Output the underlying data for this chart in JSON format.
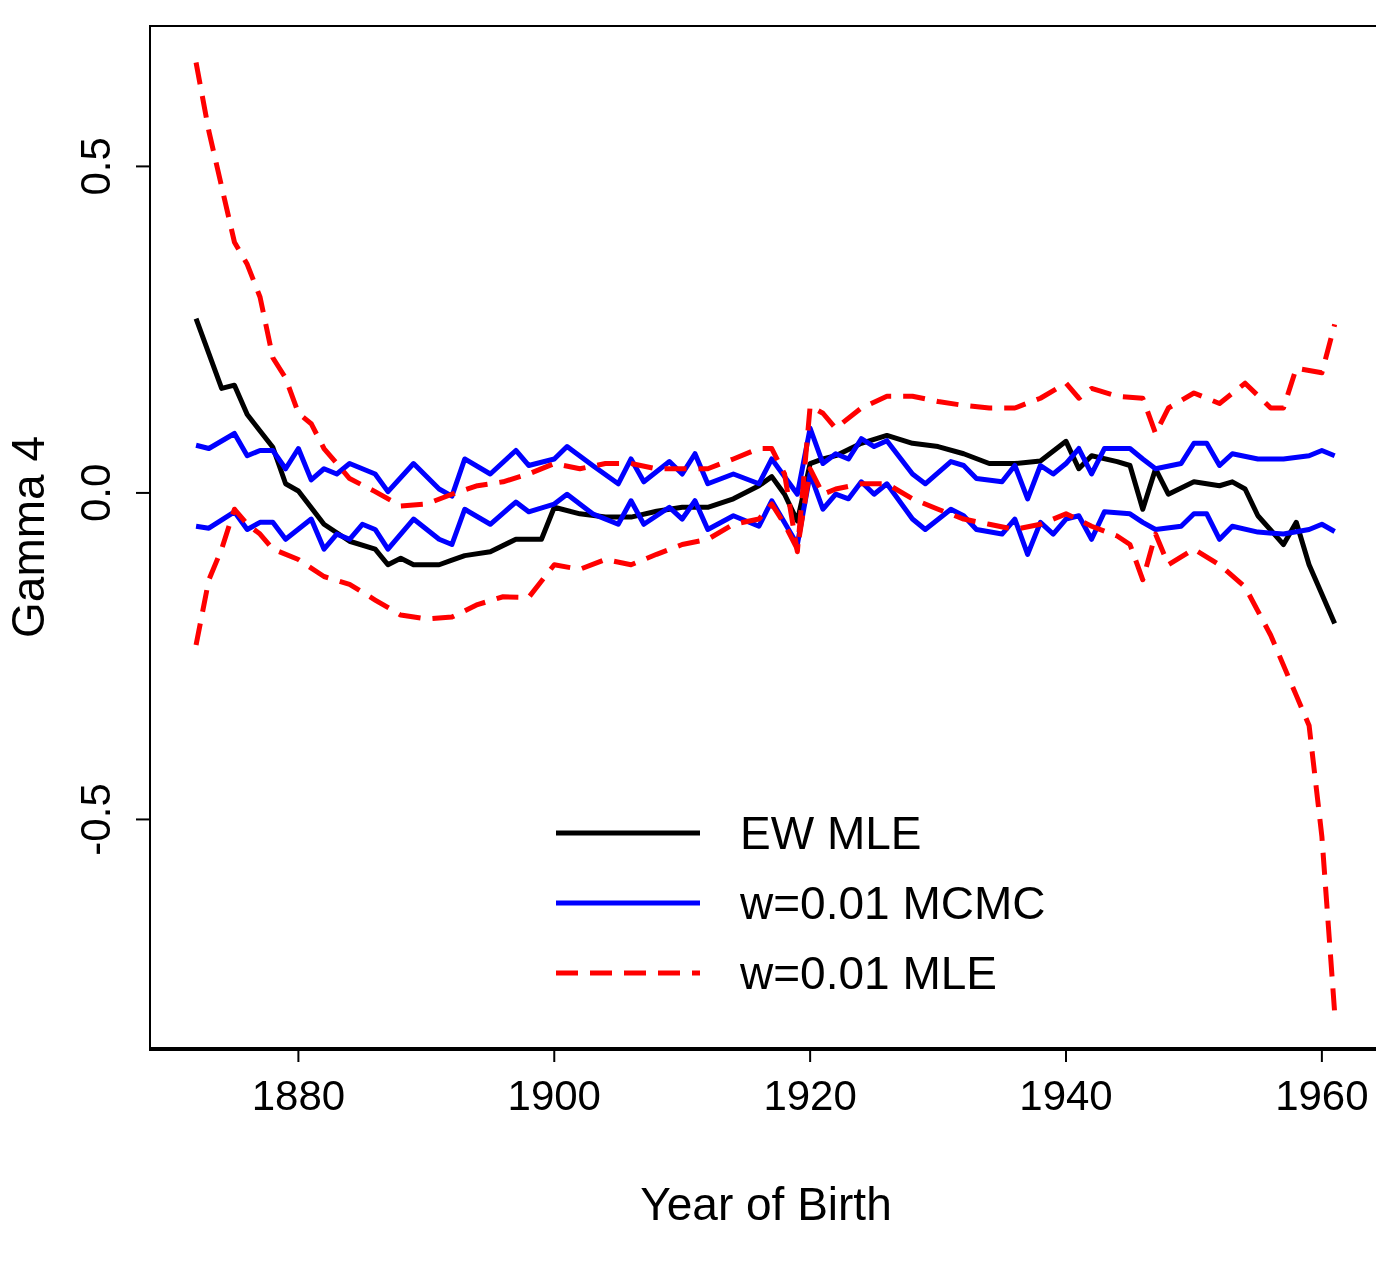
{
  "chart_data": {
    "type": "line",
    "xlabel": "Year of Birth",
    "ylabel": "Gamma 4",
    "xlim": [
      1868.4,
      1964.7
    ],
    "ylim": [
      -0.85,
      0.715
    ],
    "xticks": [
      1880,
      1900,
      1920,
      1940,
      1960
    ],
    "yticks": [
      -0.5,
      {
        "value": 0,
        "label": "0.0"
      },
      0.5
    ],
    "tick_labels": "xy",
    "grid": false,
    "legend": "bottom",
    "marker": "none",
    "series": [
      {
        "name": "EW MLE",
        "color": "#000000",
        "line_style": "solid",
        "x": [
          1872,
          1874,
          1875,
          1876,
          1878,
          1879,
          1880,
          1882,
          1884,
          1886,
          1887,
          1888,
          1889,
          1891,
          1892,
          1893,
          1895,
          1897,
          1899,
          1900,
          1902,
          1904,
          1906,
          1908,
          1910,
          1912,
          1914,
          1916,
          1917,
          1918,
          1919,
          1920,
          1921,
          1922,
          1924,
          1926,
          1928,
          1930,
          1932,
          1934,
          1936,
          1938,
          1940,
          1941,
          1942,
          1944,
          1945,
          1946,
          1947,
          1948,
          1950,
          1952,
          1953,
          1954,
          1955,
          1957,
          1958,
          1959,
          1961
        ],
        "values": [
          0.267,
          0.16,
          0.165,
          0.12,
          0.07,
          0.014,
          0.003,
          -0.048,
          -0.074,
          -0.086,
          -0.11,
          -0.1,
          -0.11,
          -0.11,
          -0.103,
          -0.096,
          -0.09,
          -0.071,
          -0.071,
          -0.022,
          -0.032,
          -0.037,
          -0.037,
          -0.028,
          -0.022,
          -0.022,
          -0.009,
          0.011,
          0.025,
          -0.002,
          -0.043,
          0.045,
          0.052,
          0.057,
          0.076,
          0.088,
          0.076,
          0.071,
          0.06,
          0.045,
          0.045,
          0.049,
          0.079,
          0.037,
          0.057,
          0.048,
          0.042,
          -0.025,
          0.037,
          -0.002,
          0.017,
          0.011,
          0.017,
          0.006,
          -0.035,
          -0.079,
          -0.045,
          -0.11,
          -0.2
        ]
      },
      {
        "name": "w=0.01 MCMC",
        "color": "#0000ff",
        "line_style": "solid",
        "x": [
          1872,
          1873,
          1875,
          1876,
          1877,
          1878,
          1879,
          1880,
          1881,
          1882,
          1883,
          1884,
          1886,
          1887,
          1889,
          1891,
          1892,
          1893,
          1895,
          1897,
          1898,
          1900,
          1901,
          1903,
          1905,
          1906,
          1907,
          1909,
          1910,
          1911,
          1912,
          1914,
          1916,
          1917,
          1919,
          1920,
          1921,
          1922,
          1923,
          1924,
          1925,
          1926,
          1928,
          1929,
          1931,
          1932,
          1933,
          1935,
          1936,
          1937,
          1938,
          1939,
          1940,
          1941,
          1942,
          1943,
          1945,
          1946,
          1947,
          1949,
          1950,
          1951,
          1952,
          1953,
          1955,
          1957,
          1959,
          1960,
          1961
        ],
        "values": [
          0.073,
          0.068,
          0.091,
          0.057,
          0.065,
          0.065,
          0.037,
          0.068,
          0.02,
          0.037,
          0.029,
          0.045,
          0.029,
          0.002,
          0.045,
          0.006,
          -0.005,
          0.052,
          0.029,
          0.065,
          0.042,
          0.052,
          0.071,
          0.042,
          0.014,
          0.052,
          0.017,
          0.048,
          0.029,
          0.06,
          0.014,
          0.029,
          0.014,
          0.052,
          -0.002,
          0.099,
          0.045,
          0.06,
          0.052,
          0.083,
          0.071,
          0.08,
          0.029,
          0.014,
          0.048,
          0.042,
          0.022,
          0.017,
          0.042,
          -0.009,
          0.042,
          0.029,
          0.045,
          0.068,
          0.029,
          0.068,
          0.068,
          0.052,
          0.037,
          0.045,
          0.076,
          0.076,
          0.042,
          0.06,
          0.052,
          0.052,
          0.057,
          0.065,
          0.057
        ]
      },
      {
        "color": "#0000ff",
        "line_style": "solid",
        "x": [
          1872,
          1873,
          1875,
          1876,
          1877,
          1878,
          1879,
          1881,
          1882,
          1883,
          1884,
          1885,
          1886,
          1887,
          1889,
          1891,
          1892,
          1893,
          1895,
          1897,
          1898,
          1900,
          1901,
          1903,
          1905,
          1906,
          1907,
          1909,
          1910,
          1911,
          1912,
          1914,
          1916,
          1917,
          1919,
          1920,
          1921,
          1922,
          1923,
          1924,
          1925,
          1926,
          1928,
          1929,
          1931,
          1932,
          1933,
          1935,
          1936,
          1937,
          1938,
          1939,
          1940,
          1941,
          1942,
          1943,
          1945,
          1946,
          1947,
          1949,
          1950,
          1951,
          1952,
          1953,
          1955,
          1957,
          1959,
          1960,
          1961
        ],
        "values": [
          -0.051,
          -0.054,
          -0.029,
          -0.056,
          -0.045,
          -0.045,
          -0.071,
          -0.04,
          -0.086,
          -0.063,
          -0.071,
          -0.048,
          -0.056,
          -0.086,
          -0.04,
          -0.071,
          -0.079,
          -0.025,
          -0.048,
          -0.014,
          -0.029,
          -0.017,
          -0.002,
          -0.032,
          -0.048,
          -0.012,
          -0.048,
          -0.022,
          -0.04,
          -0.012,
          -0.056,
          -0.035,
          -0.051,
          -0.012,
          -0.079,
          0.029,
          -0.025,
          -0.002,
          -0.009,
          0.017,
          -0.002,
          0.014,
          -0.04,
          -0.056,
          -0.025,
          -0.035,
          -0.056,
          -0.063,
          -0.04,
          -0.094,
          -0.045,
          -0.063,
          -0.04,
          -0.035,
          -0.071,
          -0.029,
          -0.032,
          -0.045,
          -0.056,
          -0.051,
          -0.032,
          -0.032,
          -0.071,
          -0.051,
          -0.06,
          -0.063,
          -0.056,
          -0.048,
          -0.059
        ]
      },
      {
        "name": "w=0.01 MLE",
        "color": "#ff0000",
        "line_style": "dashed",
        "x": [
          1872,
          1873,
          1874,
          1875,
          1876,
          1877,
          1878,
          1879,
          1880,
          1881,
          1882,
          1883,
          1884,
          1886,
          1888,
          1890,
          1892,
          1894,
          1896,
          1898,
          1900,
          1902,
          1904,
          1906,
          1908,
          1910,
          1912,
          1914,
          1916,
          1917,
          1918,
          1919,
          1920,
          1921,
          1922,
          1924,
          1926,
          1928,
          1930,
          1932,
          1934,
          1936,
          1938,
          1940,
          1941,
          1942,
          1944,
          1946,
          1947,
          1948,
          1950,
          1952,
          1954,
          1956,
          1957,
          1958,
          1960,
          1961
        ],
        "values": [
          0.659,
          0.554,
          0.469,
          0.384,
          0.35,
          0.3,
          0.207,
          0.176,
          0.122,
          0.106,
          0.068,
          0.045,
          0.022,
          0.002,
          -0.02,
          -0.017,
          -0.002,
          0.011,
          0.017,
          0.029,
          0.045,
          0.037,
          0.045,
          0.045,
          0.037,
          0.037,
          0.037,
          0.052,
          0.068,
          0.068,
          0.029,
          -0.09,
          0.133,
          0.122,
          0.099,
          0.13,
          0.148,
          0.148,
          0.14,
          0.134,
          0.13,
          0.13,
          0.145,
          0.168,
          0.145,
          0.16,
          0.148,
          0.145,
          0.091,
          0.13,
          0.153,
          0.137,
          0.168,
          0.13,
          0.13,
          0.191,
          0.184,
          0.258
        ]
      },
      {
        "color": "#ff0000",
        "line_style": "dashed",
        "x": [
          1872,
          1873,
          1874,
          1875,
          1876,
          1877,
          1878,
          1880,
          1882,
          1884,
          1886,
          1888,
          1890,
          1892,
          1894,
          1896,
          1898,
          1900,
          1902,
          1904,
          1906,
          1908,
          1910,
          1912,
          1914,
          1916,
          1917,
          1918,
          1919,
          1920,
          1921,
          1922,
          1924,
          1926,
          1928,
          1930,
          1932,
          1934,
          1936,
          1938,
          1940,
          1942,
          1944,
          1945,
          1946,
          1947,
          1948,
          1950,
          1952,
          1954,
          1956,
          1958,
          1959,
          1960,
          1961
        ],
        "values": [
          -0.233,
          -0.133,
          -0.086,
          -0.025,
          -0.048,
          -0.063,
          -0.086,
          -0.102,
          -0.128,
          -0.14,
          -0.164,
          -0.187,
          -0.193,
          -0.19,
          -0.171,
          -0.159,
          -0.16,
          -0.11,
          -0.117,
          -0.102,
          -0.11,
          -0.094,
          -0.079,
          -0.071,
          -0.048,
          -0.04,
          -0.017,
          -0.048,
          -0.086,
          0.037,
          -0.002,
          0.006,
          0.014,
          0.014,
          -0.009,
          -0.025,
          -0.04,
          -0.048,
          -0.056,
          -0.048,
          -0.032,
          -0.051,
          -0.066,
          -0.079,
          -0.133,
          -0.063,
          -0.11,
          -0.086,
          -0.11,
          -0.144,
          -0.218,
          -0.31,
          -0.356,
          -0.526,
          -0.796
        ]
      }
    ]
  }
}
